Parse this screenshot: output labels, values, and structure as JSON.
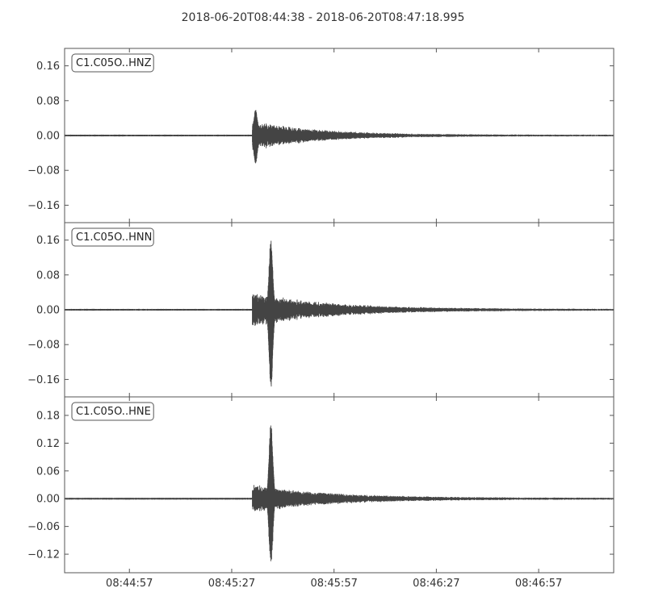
{
  "chart_data": {
    "type": "line",
    "title": "2018-06-20T08:44:38  -  2018-06-20T08:47:18.995",
    "x_start": "08:44:38",
    "x_end": "08:47:18.995",
    "x_tick_labels": [
      "08:44:57",
      "08:45:27",
      "08:45:57",
      "08:46:27",
      "08:46:57"
    ],
    "x_tick_times_s": [
      19,
      49,
      79,
      109,
      139
    ],
    "x_range_s": [
      0,
      161
    ],
    "grid": false,
    "legend": "none",
    "colors": {
      "trace": "#444444",
      "axis": "#555555",
      "text": "#333333"
    },
    "panels": [
      {
        "name": "C1.C05O..HNZ",
        "ylim": [
          -0.2,
          0.2
        ],
        "yticks": [
          -0.16,
          -0.08,
          0.0,
          0.08,
          0.16
        ],
        "ytick_labels": [
          "−0.16",
          "−0.08",
          "0.00",
          "0.08",
          "0.16"
        ],
        "onset_s": 55,
        "peak_s": 56,
        "peak_amp": 0.06,
        "trough_amp": -0.065,
        "coda_amp": 0.035,
        "decay_s": 18
      },
      {
        "name": "C1.C05O..HNN",
        "ylim": [
          -0.2,
          0.2
        ],
        "yticks": [
          -0.16,
          -0.08,
          0.0,
          0.08,
          0.16
        ],
        "ytick_labels": [
          "−0.16",
          "−0.08",
          "0.00",
          "0.08",
          "0.16"
        ],
        "onset_s": 55,
        "peak_s": 60.5,
        "peak_amp": 0.15,
        "trough_amp": -0.18,
        "coda_amp": 0.04,
        "decay_s": 22
      },
      {
        "name": "C1.C05O..HNE",
        "ylim": [
          -0.16,
          0.22
        ],
        "yticks": [
          -0.12,
          -0.06,
          0.0,
          0.06,
          0.12,
          0.18
        ],
        "ytick_labels": [
          "−0.12",
          "−0.06",
          "0.00",
          "0.06",
          "0.12",
          "0.18"
        ],
        "onset_s": 55,
        "peak_s": 60.5,
        "peak_amp": 0.165,
        "trough_amp": -0.14,
        "coda_amp": 0.03,
        "decay_s": 22
      }
    ]
  }
}
